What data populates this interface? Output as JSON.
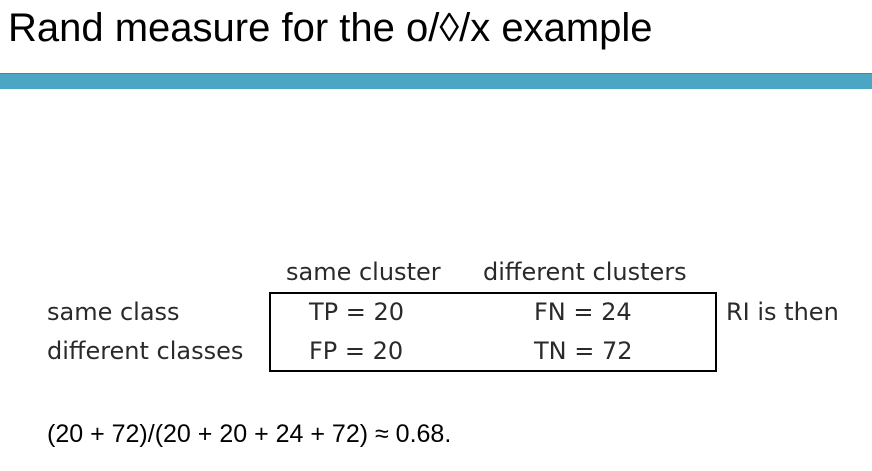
{
  "slide": {
    "title": "Rand measure for the o/◊/x example"
  },
  "table": {
    "column_headers": [
      "same cluster",
      "different clusters"
    ],
    "row_headers": [
      "same class",
      "different classes"
    ],
    "cells": {
      "tp": "TP = 20",
      "fn": "FN = 24",
      "fp": "FP = 20",
      "tn": "TN = 72"
    }
  },
  "ri_label": "RI is then",
  "formula": "(20 + 72)/(20 + 20 + 24 + 72) ≈ 0.68.",
  "colors": {
    "accent_bar": "#4ba6c4"
  }
}
